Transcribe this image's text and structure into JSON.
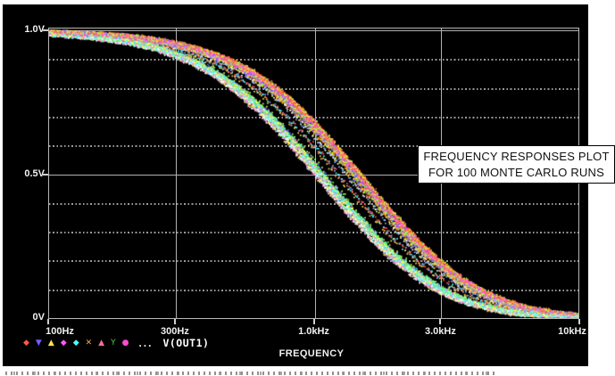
{
  "figure": {
    "annotation": {
      "line1": "FREQUENCY RESPONSES PLOT",
      "line2": "FOR 100 MONTE CARLO RUNS"
    },
    "legend": {
      "markers": [
        {
          "glyph": "◆",
          "color": "#ff5a4a"
        },
        {
          "glyph": "▼",
          "color": "#7a5aff"
        },
        {
          "glyph": "▲",
          "color": "#ffe24a"
        },
        {
          "glyph": "◆",
          "color": "#ff5aff"
        },
        {
          "glyph": "◆",
          "color": "#4affff"
        },
        {
          "glyph": "✕",
          "color": "#ffaa3a"
        },
        {
          "glyph": "▲",
          "color": "#ff6a9a"
        },
        {
          "glyph": "Y",
          "color": "#4ad24a"
        },
        {
          "glyph": "●",
          "color": "#ff4ad2"
        }
      ],
      "ellipsis": "...",
      "trace_label": "V(OUT1)"
    },
    "footer_caption_clipped": true
  },
  "chart_data": {
    "type": "scatter",
    "title": "FREQUENCY RESPONSES PLOT FOR 100 MONTE CARLO RUNS",
    "signal": "V(OUT1)",
    "runs": 100,
    "x_axis": {
      "label": "FREQUENCY",
      "scale": "log",
      "min_hz": 100,
      "max_hz": 10000,
      "ticks": [
        "100Hz",
        "300Hz",
        "1.0kHz",
        "3.0kHz",
        "10kHz"
      ],
      "tick_hz": [
        100,
        300,
        1000,
        3000,
        10000
      ]
    },
    "y_axis": {
      "min_v": 0,
      "max_v": 1.01,
      "unit": "V",
      "ticks": [
        "1.0V",
        "0.5V",
        "0V"
      ],
      "tick_v": [
        1.0,
        0.5,
        0
      ],
      "minor_grid_step_v": 0.1
    },
    "grid": {
      "h_major_v": [
        1.0,
        0.5
      ],
      "h_minor_v": [
        0.9,
        0.8,
        0.7,
        0.6,
        0.4,
        0.3,
        0.2,
        0.1
      ],
      "v_major_hz": [
        300,
        1000,
        3000
      ]
    },
    "band": {
      "f_hz": [
        100,
        300,
        1000,
        2000,
        3000,
        10000
      ],
      "v_min": [
        0.99,
        0.92,
        0.55,
        0.21,
        0.08,
        0.005
      ],
      "v_max": [
        1.0,
        0.97,
        0.69,
        0.42,
        0.18,
        0.03
      ]
    },
    "model": {
      "family": "low-pass",
      "f1_clusters_hz": [
        [
          720,
          790
        ],
        [
          1000,
          1090
        ]
      ],
      "extra_pole_multiple": 3.2
    },
    "trace_palette": [
      "#ffff55",
      "#ff55ff",
      "#55ffff",
      "#ff5555",
      "#55ff55",
      "#6a6aff",
      "#ffffff",
      "#ffaa00",
      "#ff88cc",
      "#aaff55",
      "#88aaff",
      "#ffd24a"
    ]
  },
  "colors": {
    "screen_bg": "#000000",
    "grid_major": "#b0b0b0",
    "grid_minor": "#9a9a9a",
    "axis_text": "#f0f0f0",
    "annotation_bg": "#ffffff",
    "annotation_text": "#111111",
    "page_bg": "#ffffff"
  }
}
